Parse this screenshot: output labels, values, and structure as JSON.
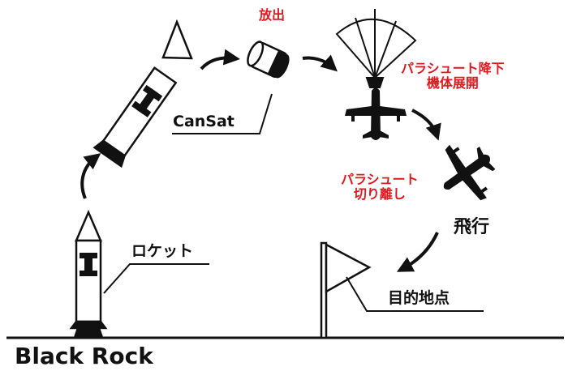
{
  "labels": {
    "release": "放出",
    "cansat": "CanSat",
    "parachute_descent_line1": "パラシュート降下",
    "parachute_descent_line2": "機体展開",
    "parachute_separation_line1": "パラシュート",
    "parachute_separation_line2": "切り離し",
    "flight": "飛行",
    "rocket": "ロケット",
    "goal": "目的地点",
    "launch_site": "Black Rock"
  },
  "colors": {
    "ink": "#111111",
    "accent_red": "#e0191f",
    "background": "#ffffff"
  },
  "icons": [
    "rocket-icon",
    "rocket-upper-stage-icon",
    "nose-cone-icon",
    "cansat-can-icon",
    "parachute-icon",
    "airplane-icon",
    "goal-flag-icon",
    "flow-arrow-icon"
  ]
}
